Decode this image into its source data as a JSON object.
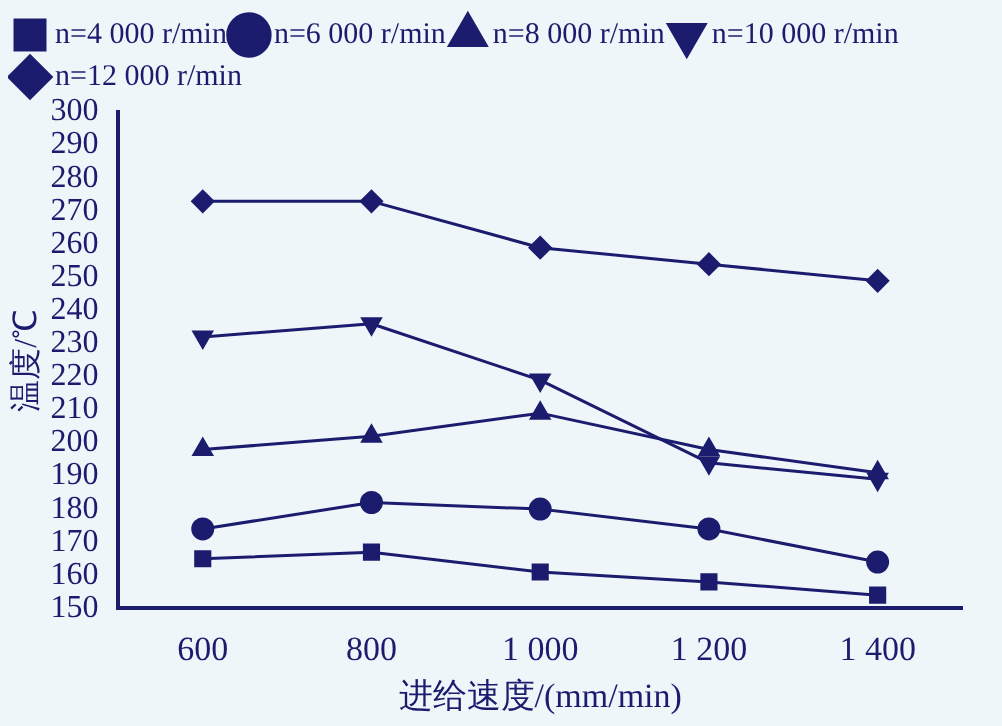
{
  "chart_data": {
    "type": "line",
    "xlabel": "进给速度/(mm/min)",
    "ylabel": "温度/℃",
    "categories": [
      "600",
      "800",
      "1 000",
      "1 200",
      "1 400"
    ],
    "series": [
      {
        "name": "n=4 000 r/min",
        "color": "#1c1c6e",
        "marker": "square",
        "values": [
          165,
          167,
          161,
          158,
          154
        ]
      },
      {
        "name": "n=6 000 r/min",
        "color": "#1c1c6e",
        "marker": "circle",
        "values": [
          174,
          182,
          180,
          174,
          164
        ]
      },
      {
        "name": "n=8 000 r/min",
        "color": "#1c1c6e",
        "marker": "triangle",
        "values": [
          198,
          202,
          209,
          198,
          191
        ]
      },
      {
        "name": "n=10 000 r/min",
        "color": "#1c1c6e",
        "marker": "triangle-down",
        "values": [
          232,
          236,
          219,
          194,
          189
        ]
      },
      {
        "name": "n=12 000 r/min",
        "color": "#1c1c6e",
        "marker": "diamond",
        "values": [
          273,
          273,
          259,
          254,
          249
        ]
      }
    ],
    "ylim": [
      150,
      300
    ],
    "yticks": [
      150,
      160,
      170,
      180,
      190,
      200,
      210,
      220,
      230,
      240,
      250,
      260,
      270,
      280,
      290,
      300
    ],
    "grid": false,
    "legend": "top",
    "line_style": "solid"
  }
}
